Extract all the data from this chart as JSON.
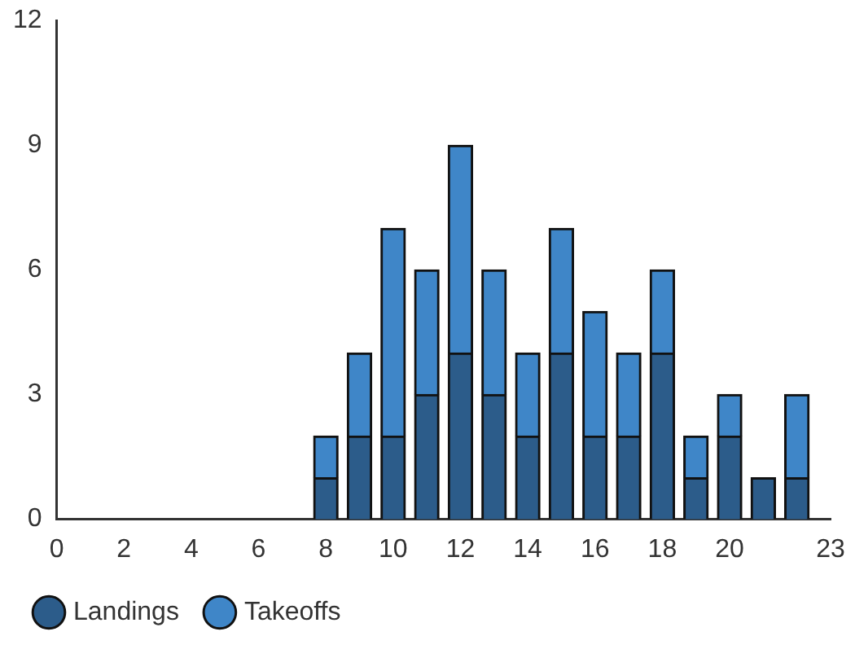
{
  "chart_data": {
    "type": "bar",
    "stacked": true,
    "x": [
      8,
      9,
      10,
      11,
      12,
      13,
      14,
      15,
      16,
      17,
      18,
      19,
      20,
      21,
      22
    ],
    "series": [
      {
        "name": "Landings",
        "color": "#2c5c8a",
        "values": [
          1,
          2,
          2,
          3,
          4,
          3,
          2,
          4,
          2,
          2,
          4,
          1,
          2,
          1,
          1
        ]
      },
      {
        "name": "Takeoffs",
        "color": "#3f86c8",
        "values": [
          1,
          2,
          5,
          3,
          5,
          3,
          2,
          3,
          3,
          2,
          2,
          1,
          1,
          0,
          2
        ]
      }
    ],
    "xlim": [
      0,
      23
    ],
    "xticks": [
      0,
      2,
      4,
      6,
      8,
      10,
      12,
      14,
      16,
      18,
      20,
      23
    ],
    "ylim": [
      0,
      12
    ],
    "yticks": [
      0,
      3,
      6,
      9,
      12
    ],
    "grid": false,
    "legend": "bottom"
  }
}
